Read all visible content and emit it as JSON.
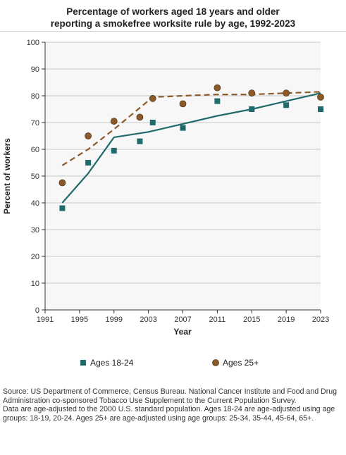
{
  "chart_data": {
    "type": "scatter",
    "title_line1": "Percentage of workers aged 18 years and older",
    "title_line2": "reporting a smokefree worksite rule by age, 1992-2023",
    "xlabel": "Year",
    "ylabel": "Percent of workers",
    "xlim": [
      1991,
      2023
    ],
    "ylim": [
      0,
      100
    ],
    "x_ticks": [
      1991,
      1995,
      1999,
      2003,
      2007,
      2011,
      2015,
      2019,
      2023
    ],
    "y_ticks": [
      0,
      10,
      20,
      30,
      40,
      50,
      60,
      70,
      80,
      90,
      100
    ],
    "grid": true,
    "legend_position": "bottom",
    "series": [
      {
        "name": "Ages 18-24",
        "marker": "square",
        "color": "#1f6b6b",
        "line_style": "solid",
        "points": [
          {
            "x": 1993,
            "y": 38
          },
          {
            "x": 1996,
            "y": 55
          },
          {
            "x": 1999,
            "y": 59.5
          },
          {
            "x": 2002,
            "y": 63
          },
          {
            "x": 2003.5,
            "y": 70
          },
          {
            "x": 2007,
            "y": 68
          },
          {
            "x": 2011,
            "y": 78
          },
          {
            "x": 2015,
            "y": 75
          },
          {
            "x": 2019,
            "y": 76.5
          },
          {
            "x": 2023,
            "y": 75
          }
        ],
        "trend": [
          {
            "x": 1993,
            "y": 40
          },
          {
            "x": 1996,
            "y": 51
          },
          {
            "x": 1999,
            "y": 64.5
          },
          {
            "x": 2003,
            "y": 66.5
          },
          {
            "x": 2007,
            "y": 69.5
          },
          {
            "x": 2011,
            "y": 72.5
          },
          {
            "x": 2015,
            "y": 75
          },
          {
            "x": 2019,
            "y": 78
          },
          {
            "x": 2023,
            "y": 81
          }
        ]
      },
      {
        "name": "Ages 25+",
        "marker": "circle",
        "color": "#8b5a2b",
        "line_style": "dashed",
        "points": [
          {
            "x": 1993,
            "y": 47.5
          },
          {
            "x": 1996,
            "y": 65
          },
          {
            "x": 1999,
            "y": 70.5
          },
          {
            "x": 2002,
            "y": 72
          },
          {
            "x": 2003.5,
            "y": 79
          },
          {
            "x": 2007,
            "y": 77
          },
          {
            "x": 2011,
            "y": 83
          },
          {
            "x": 2015,
            "y": 81
          },
          {
            "x": 2019,
            "y": 81
          },
          {
            "x": 2023,
            "y": 79.5
          }
        ],
        "trend": [
          {
            "x": 1993,
            "y": 54
          },
          {
            "x": 1996,
            "y": 60
          },
          {
            "x": 1999,
            "y": 67.5
          },
          {
            "x": 2003.5,
            "y": 79.5
          },
          {
            "x": 2007,
            "y": 80
          },
          {
            "x": 2011,
            "y": 80.5
          },
          {
            "x": 2015,
            "y": 80.5
          },
          {
            "x": 2019,
            "y": 81
          },
          {
            "x": 2023,
            "y": 81.5
          }
        ]
      }
    ]
  },
  "footnote": {
    "line1": "Source: US Department of Commerce, Census Bureau. National Cancer Institute and Food and Drug Administration co-sponsored Tobacco Use Supplement to the Current Population Survey.",
    "line2": "Data are age-adjusted to the 2000 U.S. standard population. Ages 18-24 are age-adjusted using age groups: 18-19, 20-24. Ages 25+ are age-adjusted using age groups: 25-34, 35-44, 45-64, 65+."
  },
  "colors": {
    "plot_background": "#f7f7f7",
    "gridline": "#c8c8c8",
    "series_18_24": "#1f6b6b",
    "series_25_plus": "#8b5a2b",
    "marker_25_plus_fill": "#8b5a2b"
  }
}
